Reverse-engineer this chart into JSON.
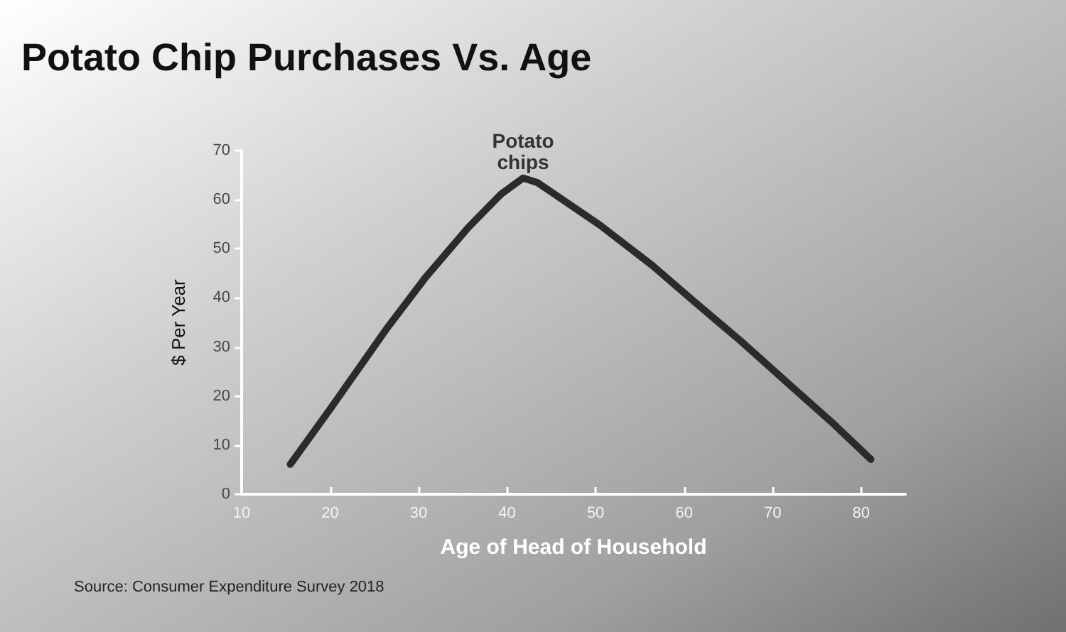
{
  "chart_data": {
    "type": "line",
    "title": "Potato Chip Purchases Vs. Age",
    "xlabel": "Age of Head of Household",
    "ylabel": "$ Per Year",
    "annotations": [
      {
        "text": "Potato\nchips",
        "x": 41.8,
        "y": 64.4
      },
      "Source: Consumer Expenditure Survey 2018"
    ],
    "x": [
      15.5,
      20.1,
      26.5,
      30.8,
      35.6,
      39.3,
      41.8,
      43.4,
      50.5,
      56.4,
      61.1,
      66.4,
      71.8,
      76.6,
      81.1
    ],
    "series": [
      {
        "color": "#2b2b2b",
        "values": [
          6.1,
          17.6,
          34.0,
          44.2,
          54.3,
          61.1,
          64.4,
          63.5,
          54.8,
          46.6,
          39.3,
          31.2,
          22.5,
          14.8,
          7.1
        ]
      }
    ],
    "xlim": [
      10,
      85
    ],
    "xticks": [
      10,
      20,
      30,
      40,
      50,
      60,
      70,
      80
    ],
    "ylim": [
      0,
      70
    ],
    "yticks": [
      0,
      10,
      20,
      30,
      40,
      50,
      60,
      70
    ],
    "grid": false,
    "marker": "none",
    "line_style": "solid"
  }
}
